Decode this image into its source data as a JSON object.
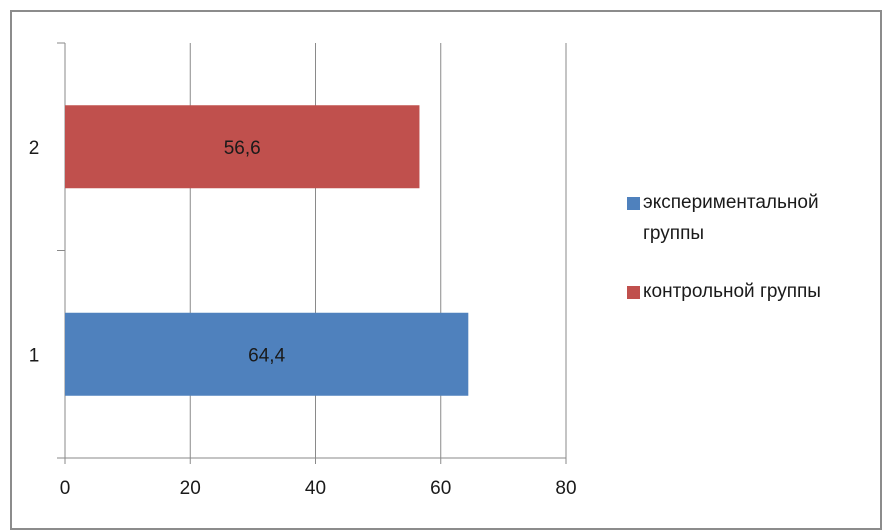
{
  "chart_data": {
    "type": "bar",
    "orientation": "horizontal",
    "categories": [
      "1",
      "2"
    ],
    "series": [
      {
        "name": "экспериментальной группы",
        "color": "#4f81bd",
        "values": [
          64.4,
          null
        ]
      },
      {
        "name": "контрольной группы",
        "color": "#c0504d",
        "values": [
          null,
          56.6
        ]
      }
    ],
    "data_labels": [
      "64,4",
      "56,6"
    ],
    "x_ticks": [
      "0",
      "20",
      "40",
      "60",
      "80"
    ],
    "xlim": [
      0,
      80
    ],
    "grid": true,
    "legend_position": "right",
    "legend": {
      "items": [
        {
          "label_lines": [
            "экспериментальной",
            "группы"
          ],
          "color": "#4f81bd"
        },
        {
          "label_lines": [
            "контрольной группы"
          ],
          "color": "#c0504d"
        }
      ]
    }
  }
}
